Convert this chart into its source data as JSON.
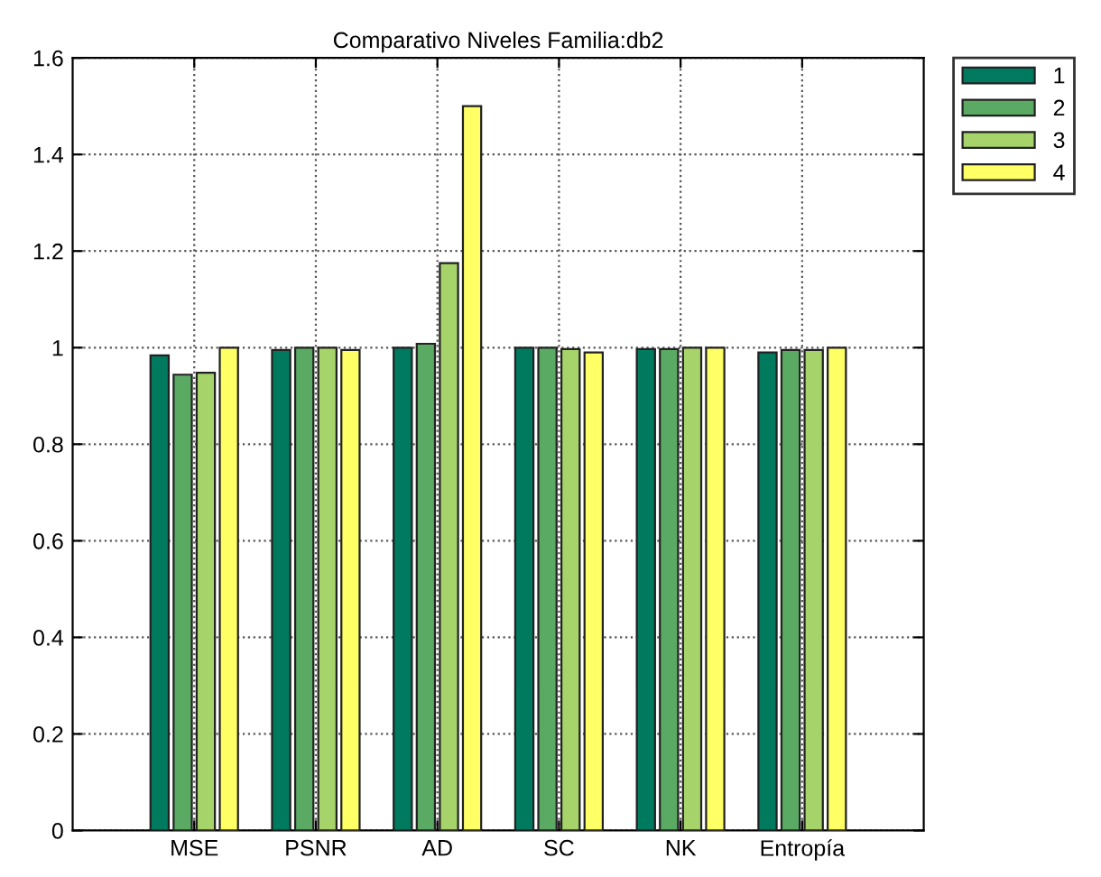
{
  "chart_data": {
    "type": "bar",
    "title": "Comparativo Niveles Familia:db2",
    "categories": [
      "MSE",
      "PSNR",
      "AD",
      "SC",
      "NK",
      "Entropía"
    ],
    "series": [
      {
        "name": "1",
        "color": "#007a5e",
        "values": [
          0.984,
          0.995,
          1.0,
          1.0,
          0.997,
          0.99
        ]
      },
      {
        "name": "2",
        "color": "#5aaa64",
        "values": [
          0.944,
          1.0,
          1.008,
          1.0,
          0.997,
          0.995
        ]
      },
      {
        "name": "3",
        "color": "#a6d46a",
        "values": [
          0.948,
          1.0,
          1.175,
          0.997,
          1.0,
          0.995
        ]
      },
      {
        "name": "4",
        "color": "#ffff66",
        "values": [
          1.0,
          0.995,
          1.5,
          0.99,
          1.0,
          1.0
        ]
      }
    ],
    "ylim": [
      0,
      1.6
    ],
    "yticks": [
      0,
      0.2,
      0.4,
      0.6,
      0.8,
      1,
      1.2,
      1.4,
      1.6
    ],
    "grid": true,
    "legend": "top right"
  }
}
